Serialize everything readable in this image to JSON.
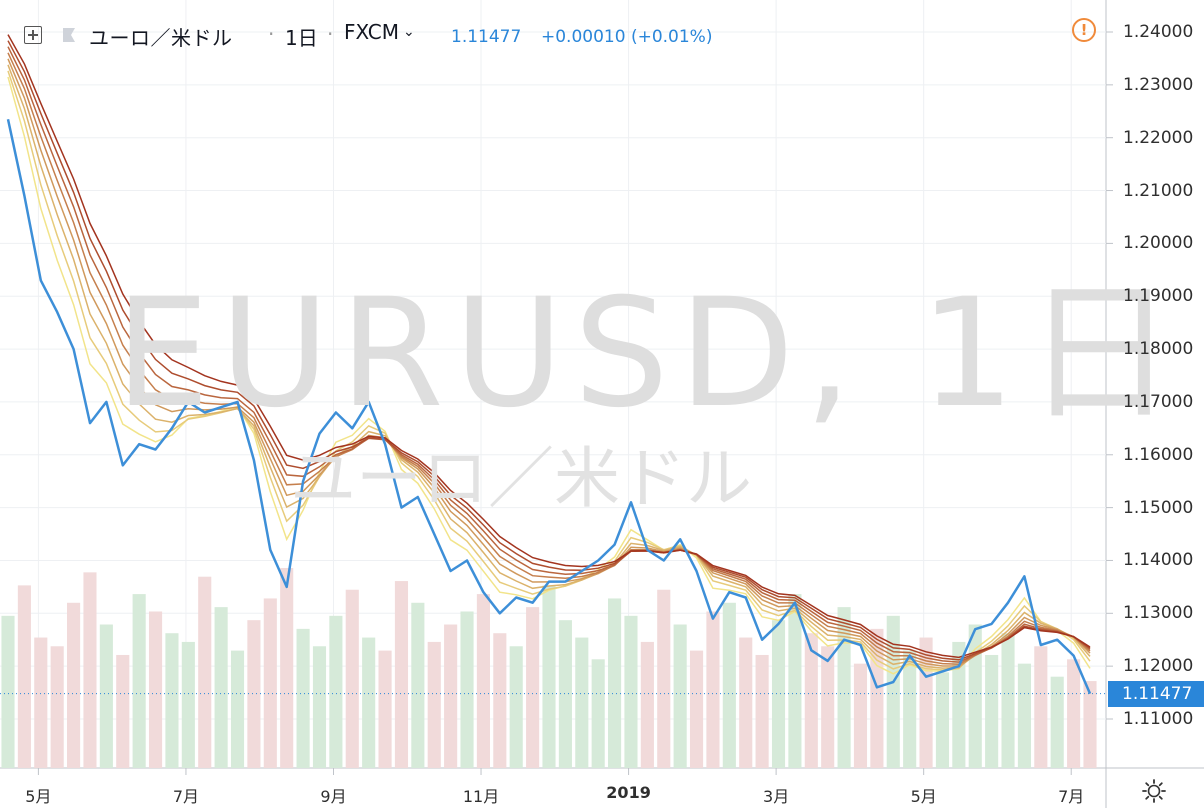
{
  "toolbar": {
    "symbol": "ユーロ／米ドル",
    "interval": "1日",
    "exchange": "FXCM",
    "price": "1.11477",
    "change": "+0.00010 (+0.01%)"
  },
  "watermark": {
    "main": "EURUSD, 1日",
    "sub": "ユーロ／米ドル"
  },
  "colors": {
    "price_line": "#3d8fd8",
    "ribbon_fast": "#f2e48a",
    "ribbon_slow": "#a3341f",
    "volume_up": "#d6ead9",
    "volume_down": "#f1dada",
    "accent": "#2a86d9"
  },
  "icons": [
    "plus-box-icon",
    "flag-icon",
    "chevron-down-icon",
    "alert-icon",
    "gear-icon"
  ],
  "price_axis": {
    "labels": [
      "1.24000",
      "1.23000",
      "1.22000",
      "1.21000",
      "1.20000",
      "1.19000",
      "1.18000",
      "1.17000",
      "1.16000",
      "1.15000",
      "1.14000",
      "1.13000",
      "1.12000",
      "1.11000"
    ],
    "last_price_label": "1.11477"
  },
  "time_axis": {
    "labels": [
      "5月",
      "7月",
      "9月",
      "11月",
      "2019",
      "3月",
      "5月",
      "7月"
    ]
  },
  "chart_data": {
    "type": "line",
    "title": "EURUSD, 1日",
    "xlabel": "",
    "ylabel": "",
    "ylim": [
      1.1,
      1.245
    ],
    "x": [
      "2018-04-20",
      "2018-04-27",
      "2018-05-04",
      "2018-05-11",
      "2018-05-18",
      "2018-05-25",
      "2018-06-01",
      "2018-06-08",
      "2018-06-15",
      "2018-06-22",
      "2018-06-29",
      "2018-07-06",
      "2018-07-13",
      "2018-07-20",
      "2018-07-27",
      "2018-08-03",
      "2018-08-10",
      "2018-08-17",
      "2018-08-24",
      "2018-08-31",
      "2018-09-07",
      "2018-09-14",
      "2018-09-21",
      "2018-09-28",
      "2018-10-05",
      "2018-10-12",
      "2018-10-19",
      "2018-10-26",
      "2018-11-02",
      "2018-11-09",
      "2018-11-16",
      "2018-11-23",
      "2018-11-30",
      "2018-12-07",
      "2018-12-14",
      "2018-12-21",
      "2018-12-28",
      "2019-01-04",
      "2019-01-11",
      "2019-01-18",
      "2019-01-25",
      "2019-02-01",
      "2019-02-08",
      "2019-02-15",
      "2019-02-22",
      "2019-03-01",
      "2019-03-08",
      "2019-03-15",
      "2019-03-22",
      "2019-03-29",
      "2019-04-05",
      "2019-04-12",
      "2019-04-19",
      "2019-04-26",
      "2019-05-03",
      "2019-05-10",
      "2019-05-17",
      "2019-05-24",
      "2019-05-31",
      "2019-06-07",
      "2019-06-14",
      "2019-06-21",
      "2019-06-28",
      "2019-07-05",
      "2019-07-12",
      "2019-07-19",
      "2019-07-26"
    ],
    "series": [
      {
        "values": [
          1.2235,
          1.209,
          1.193,
          1.187,
          1.18,
          1.166,
          1.17,
          1.158,
          1.162,
          1.161,
          1.165,
          1.17,
          1.168,
          1.169,
          1.17,
          1.159,
          1.142,
          1.135,
          1.155,
          1.164,
          1.168,
          1.165,
          1.17,
          1.162,
          1.15,
          1.152,
          1.145,
          1.138,
          1.14,
          1.134,
          1.13,
          1.133,
          1.132,
          1.136,
          1.136,
          1.138,
          1.14,
          1.143,
          1.151,
          1.142,
          1.14,
          1.144,
          1.138,
          1.129,
          1.134,
          1.133,
          1.125,
          1.128,
          1.132,
          1.123,
          1.121,
          1.125,
          1.124,
          1.116,
          1.117,
          1.122,
          1.118,
          1.119,
          1.12,
          1.127,
          1.128,
          1.132,
          1.137,
          1.124,
          1.125,
          1.122,
          1.1148
        ]
      }
    ],
    "ribbon": {
      "type": "moving_average_ribbon",
      "note_series": "8 exponential-style moving averages of the price, colored from yellow (fast) to dark red (slow)"
    },
    "volume": {
      "type": "bar",
      "values": [
        35,
        42,
        30,
        28,
        38,
        45,
        33,
        26,
        40,
        36,
        31,
        29,
        44,
        37,
        27,
        34,
        39,
        46,
        32,
        28,
        35,
        41,
        30,
        27,
        43,
        38,
        29,
        33,
        36,
        40,
        31,
        28,
        37,
        42,
        34,
        30,
        25,
        39,
        35,
        29,
        41,
        33,
        27,
        36,
        38,
        30,
        26,
        34,
        40,
        31,
        28,
        37,
        24,
        32,
        35,
        27,
        30,
        22,
        29,
        33,
        26,
        31,
        24,
        28,
        21,
        25,
        20
      ]
    },
    "grid": true
  }
}
